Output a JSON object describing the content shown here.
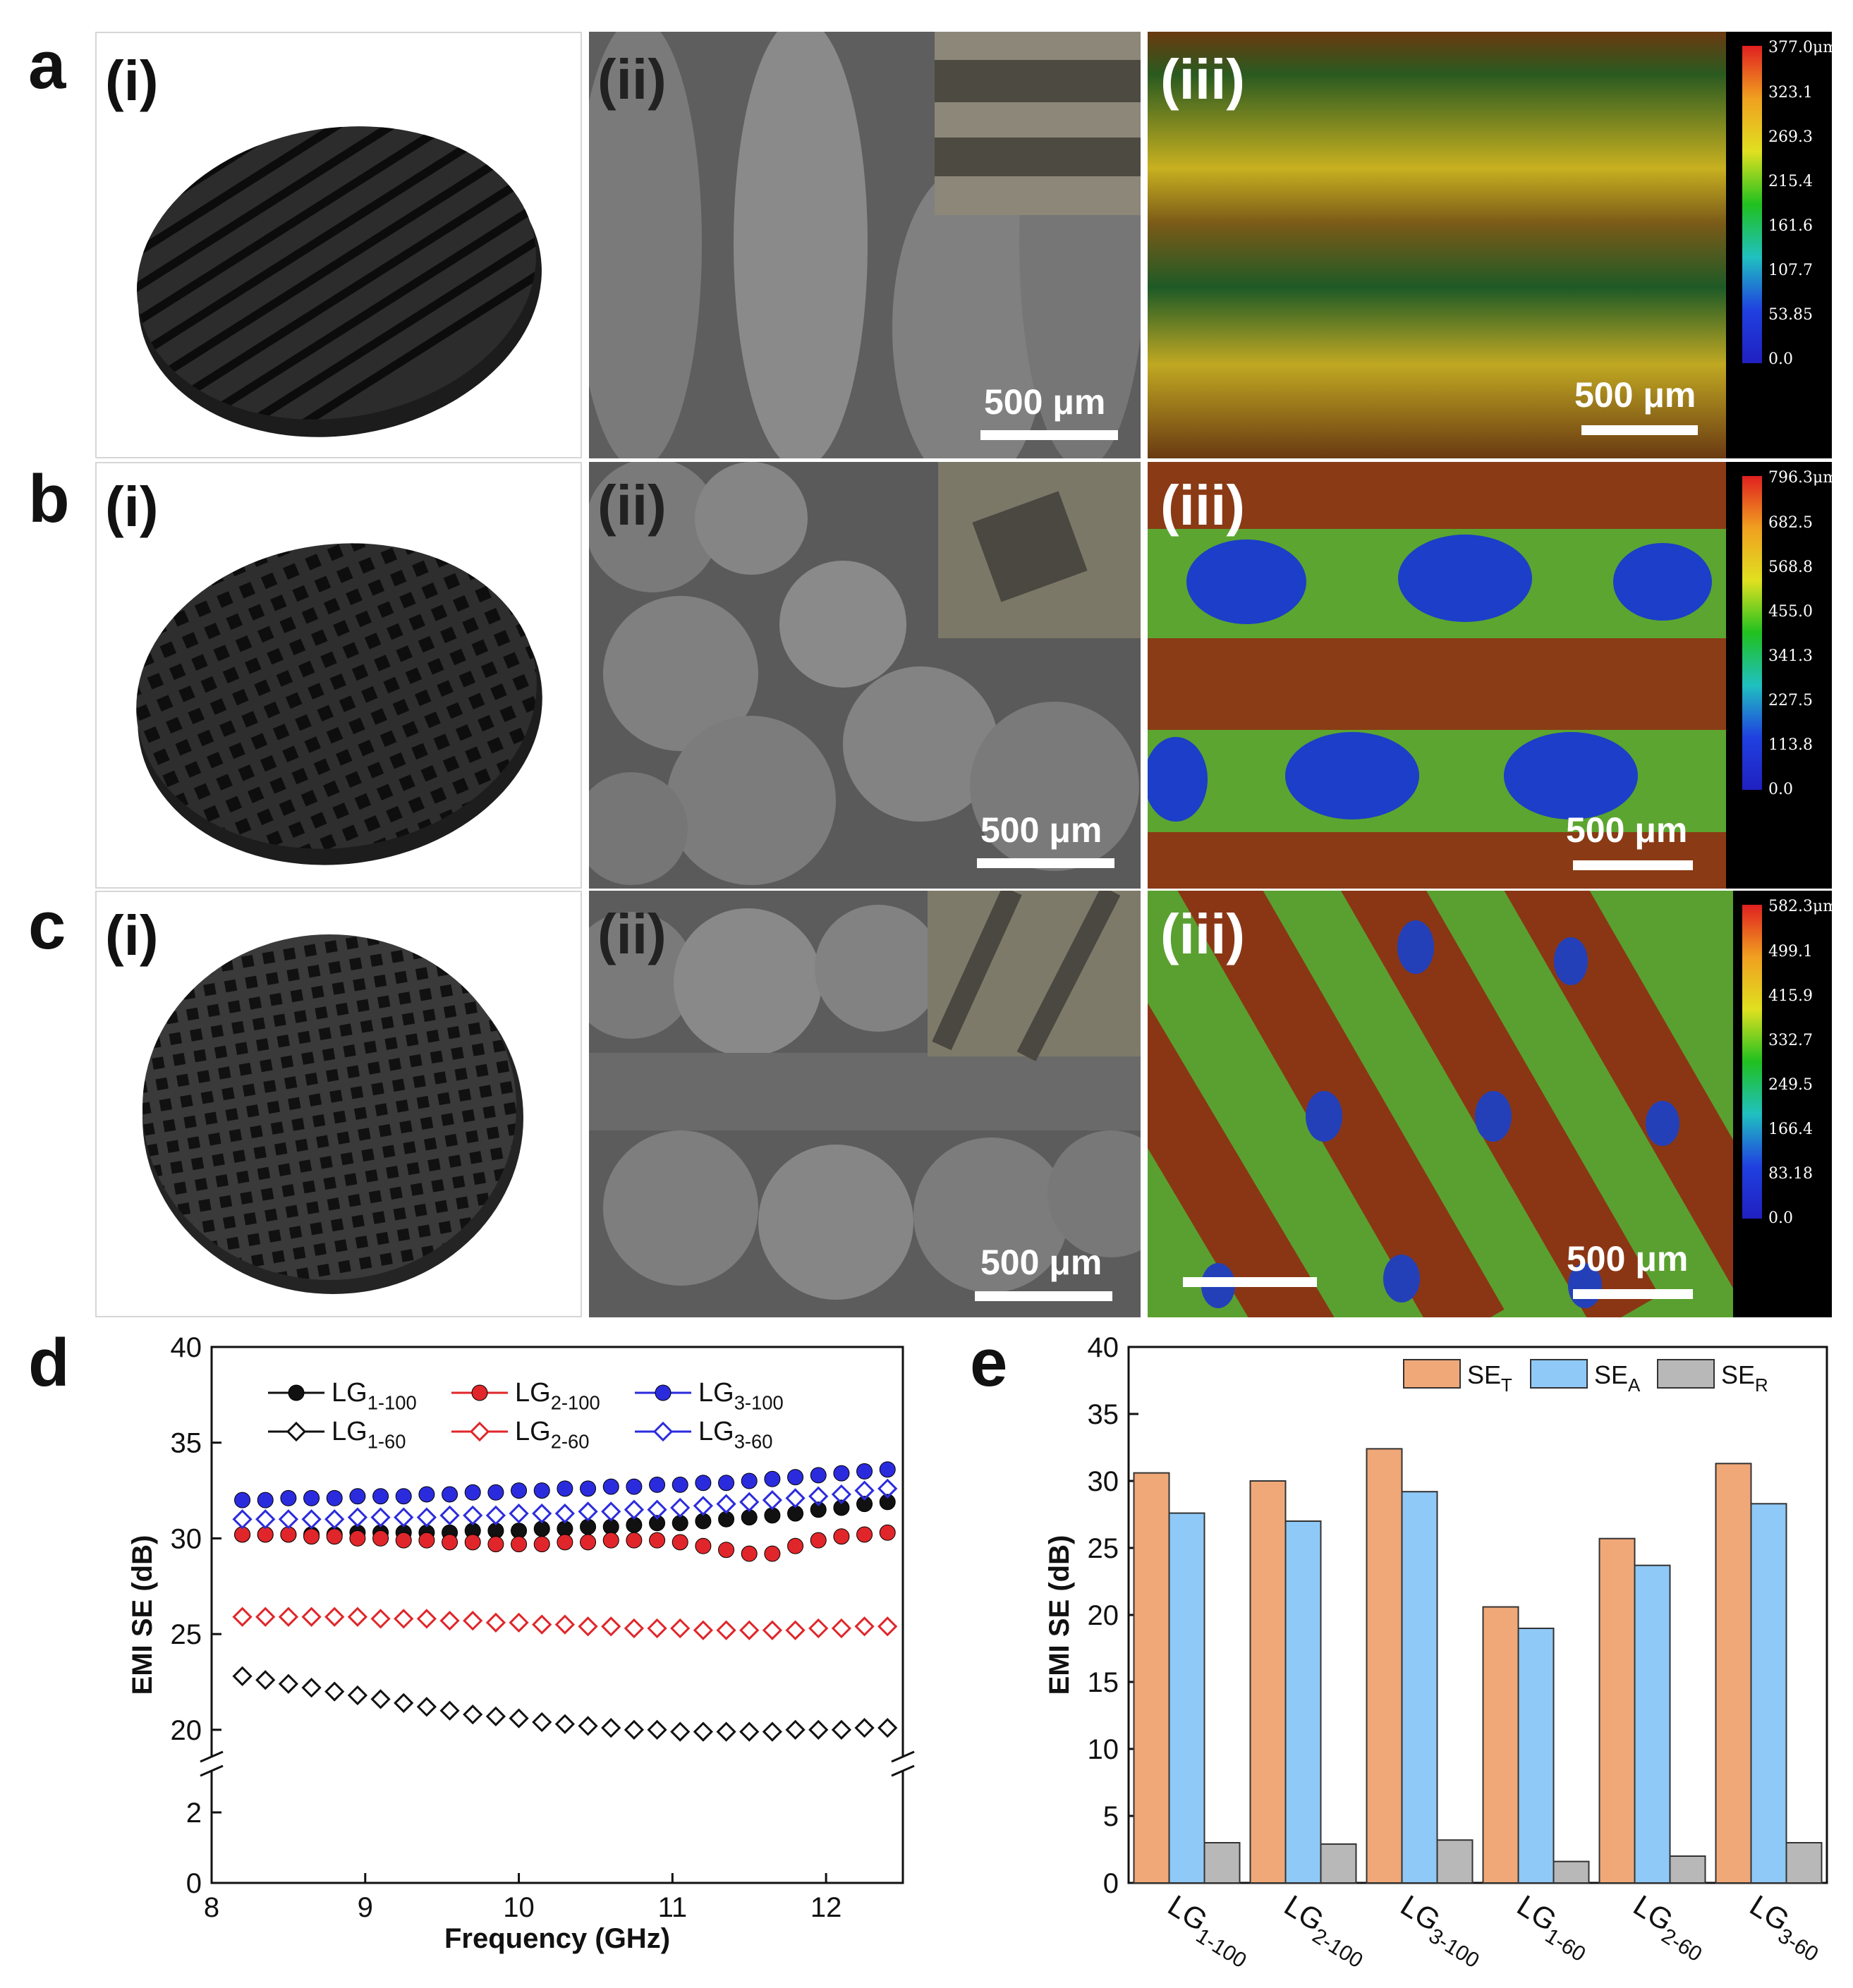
{
  "figure": {
    "panel_letters": [
      "a",
      "b",
      "c",
      "d",
      "e"
    ],
    "subpanel_labels": [
      "(i)",
      "(ii)",
      "(iii)"
    ],
    "scale_bar_label": "500 μm"
  },
  "colorbars": [
    {
      "ticks": [
        "377.0μm",
        "323.1",
        "269.3",
        "215.4",
        "161.6",
        "107.7",
        "53.85",
        "0.0"
      ]
    },
    {
      "ticks": [
        "796.3μm",
        "682.5",
        "568.8",
        "455.0",
        "341.3",
        "227.5",
        "113.8",
        "0.0"
      ]
    },
    {
      "ticks": [
        "582.3μm",
        "499.1",
        "415.9",
        "332.7",
        "249.5",
        "166.4",
        "83.18",
        "0.0"
      ]
    }
  ],
  "chart_data": [
    {
      "type": "scatter",
      "panel": "d",
      "xlabel": "Frequency (GHz)",
      "ylabel": "EMI SE (dB)",
      "xlim": [
        8,
        12.5
      ],
      "x_ticks": [
        "8",
        "9",
        "10",
        "11",
        "12"
      ],
      "y_ticks_upper": [
        "20",
        "25",
        "30",
        "35",
        "40"
      ],
      "y_ticks_lower": [
        "0",
        "2"
      ],
      "axis_break": true,
      "ylim_lower": [
        0,
        3
      ],
      "ylim_upper": [
        19,
        40
      ],
      "legend_placement": "top",
      "x": [
        8.2,
        8.35,
        8.5,
        8.65,
        8.8,
        8.95,
        9.1,
        9.25,
        9.4,
        9.55,
        9.7,
        9.85,
        10.0,
        10.15,
        10.3,
        10.45,
        10.6,
        10.75,
        10.9,
        11.05,
        11.2,
        11.35,
        11.5,
        11.65,
        11.8,
        11.95,
        12.1,
        12.25,
        12.4
      ],
      "series": [
        {
          "name": "LG",
          "sub": "1-100",
          "marker": "circle",
          "color": "#111111",
          "values": [
            30.2,
            30.2,
            30.2,
            30.2,
            30.2,
            30.3,
            30.3,
            30.3,
            30.3,
            30.3,
            30.4,
            30.4,
            30.4,
            30.5,
            30.5,
            30.6,
            30.6,
            30.7,
            30.8,
            30.8,
            30.9,
            31.0,
            31.1,
            31.2,
            31.3,
            31.5,
            31.6,
            31.8,
            31.9
          ]
        },
        {
          "name": "LG",
          "sub": "2-100",
          "marker": "circle",
          "color": "#e0262a",
          "values": [
            30.2,
            30.2,
            30.2,
            30.1,
            30.1,
            30.0,
            30.0,
            29.9,
            29.9,
            29.8,
            29.8,
            29.7,
            29.7,
            29.7,
            29.8,
            29.8,
            29.9,
            29.9,
            29.9,
            29.8,
            29.6,
            29.4,
            29.2,
            29.2,
            29.6,
            29.9,
            30.1,
            30.2,
            30.3
          ]
        },
        {
          "name": "LG",
          "sub": "3-100",
          "marker": "circle",
          "color": "#2b2bde",
          "values": [
            32.0,
            32.0,
            32.1,
            32.1,
            32.1,
            32.2,
            32.2,
            32.2,
            32.3,
            32.3,
            32.4,
            32.4,
            32.5,
            32.5,
            32.6,
            32.6,
            32.7,
            32.7,
            32.8,
            32.8,
            32.9,
            32.9,
            33.0,
            33.1,
            33.2,
            33.3,
            33.4,
            33.5,
            33.6
          ]
        },
        {
          "name": "LG",
          "sub": "1-60",
          "marker": "diamond",
          "color": "#111111",
          "values": [
            22.8,
            22.6,
            22.4,
            22.2,
            22.0,
            21.8,
            21.6,
            21.4,
            21.2,
            21.0,
            20.8,
            20.7,
            20.6,
            20.4,
            20.3,
            20.2,
            20.1,
            20.0,
            20.0,
            19.9,
            19.9,
            19.9,
            19.9,
            19.9,
            20.0,
            20.0,
            20.0,
            20.1,
            20.1
          ]
        },
        {
          "name": "LG",
          "sub": "2-60",
          "marker": "diamond",
          "color": "#e0262a",
          "values": [
            25.9,
            25.9,
            25.9,
            25.9,
            25.9,
            25.9,
            25.8,
            25.8,
            25.8,
            25.7,
            25.7,
            25.6,
            25.6,
            25.5,
            25.5,
            25.4,
            25.4,
            25.3,
            25.3,
            25.3,
            25.2,
            25.2,
            25.2,
            25.2,
            25.2,
            25.3,
            25.3,
            25.4,
            25.4
          ]
        },
        {
          "name": "LG",
          "sub": "3-60",
          "marker": "diamond",
          "color": "#2b2bde",
          "values": [
            31.0,
            31.0,
            31.0,
            31.0,
            31.0,
            31.1,
            31.1,
            31.1,
            31.1,
            31.2,
            31.2,
            31.2,
            31.3,
            31.3,
            31.3,
            31.4,
            31.4,
            31.5,
            31.5,
            31.6,
            31.7,
            31.8,
            31.9,
            32.0,
            32.1,
            32.2,
            32.3,
            32.5,
            32.6
          ]
        }
      ]
    },
    {
      "type": "bar",
      "panel": "e",
      "ylabel": "EMI SE (dB)",
      "ylim": [
        0,
        40
      ],
      "y_ticks": [
        "0",
        "5",
        "10",
        "15",
        "20",
        "25",
        "30",
        "35",
        "40"
      ],
      "legend_placement": "top-right",
      "categories": [
        {
          "main": "LG",
          "sub": "1-100"
        },
        {
          "main": "LG",
          "sub": "2-100"
        },
        {
          "main": "LG",
          "sub": "3-100"
        },
        {
          "main": "LG",
          "sub": "1-60"
        },
        {
          "main": "LG",
          "sub": "2-60"
        },
        {
          "main": "LG",
          "sub": "3-60"
        }
      ],
      "series": [
        {
          "name": "SE",
          "sub": "T",
          "color": "#f0a878",
          "values": [
            30.6,
            30.0,
            32.4,
            20.6,
            25.7,
            31.3
          ]
        },
        {
          "name": "SE",
          "sub": "A",
          "color": "#8ec9f7",
          "values": [
            27.6,
            27.0,
            29.2,
            19.0,
            23.7,
            28.3
          ]
        },
        {
          "name": "SE",
          "sub": "R",
          "color": "#b8b8b8",
          "values": [
            3.0,
            2.9,
            3.2,
            1.6,
            2.0,
            3.0
          ]
        }
      ]
    }
  ]
}
